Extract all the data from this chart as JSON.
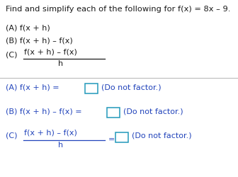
{
  "background_color": "#ffffff",
  "text_color_black": "#1a1a1a",
  "text_color_blue": "#2244bb",
  "box_edge_color": "#2299bb",
  "divider_color": "#bbbbbb",
  "title": "Find and simplify each of the following for f(x) = 8x – 9.",
  "qA": "(A) f(x + h)",
  "qB": "(B) f(x + h) – f(x)",
  "qC_label": "(C)",
  "qC_num": "f(x + h) – f(x)",
  "qC_den": "h",
  "aA_label": "(A) f(x + h) =",
  "aB_label": "(B) f(x + h) – f(x) =",
  "aC_label": "(C)",
  "aC_num": "f(x + h) – f(x)",
  "aC_den": "h",
  "aC_eq": "=",
  "dnf": "(Do not factor.)",
  "fs": 8.0,
  "fs_title": 8.2
}
